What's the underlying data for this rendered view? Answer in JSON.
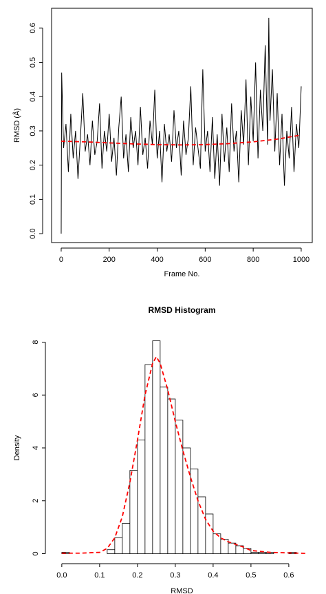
{
  "chart_data": [
    {
      "type": "line",
      "x_label": "Frame No.",
      "y_label": "RMSD (Å)",
      "xlim": [
        -40,
        1046
      ],
      "ylim": [
        -0.026,
        0.658
      ],
      "xticks": [
        0,
        200,
        400,
        600,
        800,
        1000
      ],
      "yticks": [
        {
          "value": 0,
          "label": "0.0"
        },
        0.1,
        0.2,
        0.3,
        0.4,
        0.5,
        0.6
      ],
      "box": true,
      "series": [
        {
          "color": "#000000",
          "style": "solid",
          "x": [
            0,
            2,
            10,
            20,
            30,
            40,
            50,
            60,
            70,
            80,
            90,
            100,
            110,
            120,
            130,
            140,
            150,
            160,
            170,
            180,
            190,
            200,
            210,
            220,
            230,
            240,
            250,
            260,
            270,
            280,
            290,
            300,
            310,
            320,
            330,
            340,
            350,
            360,
            370,
            380,
            390,
            400,
            410,
            420,
            430,
            440,
            450,
            460,
            470,
            480,
            490,
            500,
            510,
            520,
            530,
            540,
            550,
            560,
            570,
            580,
            590,
            600,
            610,
            620,
            630,
            640,
            650,
            660,
            670,
            680,
            690,
            700,
            710,
            720,
            730,
            740,
            750,
            760,
            770,
            780,
            790,
            800,
            810,
            820,
            830,
            840,
            850,
            860,
            865,
            870,
            880,
            890,
            900,
            910,
            920,
            930,
            940,
            950,
            960,
            970,
            980,
            990,
            1000
          ],
          "values": [
            0.0,
            0.47,
            0.25,
            0.32,
            0.18,
            0.35,
            0.22,
            0.3,
            0.16,
            0.28,
            0.41,
            0.24,
            0.29,
            0.2,
            0.33,
            0.23,
            0.27,
            0.38,
            0.19,
            0.3,
            0.24,
            0.35,
            0.21,
            0.28,
            0.17,
            0.31,
            0.4,
            0.22,
            0.29,
            0.18,
            0.34,
            0.25,
            0.3,
            0.2,
            0.37,
            0.23,
            0.28,
            0.19,
            0.33,
            0.26,
            0.42,
            0.22,
            0.3,
            0.15,
            0.32,
            0.24,
            0.29,
            0.21,
            0.36,
            0.25,
            0.3,
            0.17,
            0.33,
            0.23,
            0.28,
            0.43,
            0.2,
            0.31,
            0.25,
            0.19,
            0.48,
            0.24,
            0.3,
            0.18,
            0.34,
            0.16,
            0.29,
            0.14,
            0.35,
            0.21,
            0.31,
            0.18,
            0.38,
            0.24,
            0.3,
            0.15,
            0.36,
            0.26,
            0.45,
            0.2,
            0.4,
            0.27,
            0.5,
            0.22,
            0.42,
            0.3,
            0.55,
            0.26,
            0.63,
            0.33,
            0.48,
            0.24,
            0.41,
            0.2,
            0.35,
            0.14,
            0.3,
            0.22,
            0.37,
            0.18,
            0.32,
            0.25,
            0.43
          ]
        },
        {
          "color": "#ff0000",
          "style": "dashed",
          "x": [
            0,
            100,
            200,
            300,
            400,
            500,
            600,
            700,
            800,
            900,
            1000
          ],
          "values": [
            0.27,
            0.268,
            0.265,
            0.262,
            0.26,
            0.259,
            0.26,
            0.263,
            0.268,
            0.276,
            0.288
          ]
        }
      ]
    },
    {
      "type": "histogram",
      "title": "RMSD Histogram",
      "x_label": "RMSD",
      "y_label": "Density",
      "xlim": [
        -0.027,
        0.662
      ],
      "ylim": [
        -0.3,
        8.3
      ],
      "xticks": [
        {
          "value": 0,
          "label": "0.0"
        },
        0.1,
        0.2,
        0.3,
        0.4,
        0.5,
        0.6
      ],
      "yticks": [
        0,
        2,
        4,
        6,
        8
      ],
      "bins": [
        0,
        0.02,
        0.04,
        0.06,
        0.08,
        0.1,
        0.12,
        0.14,
        0.16,
        0.18,
        0.2,
        0.22,
        0.24,
        0.26,
        0.28,
        0.3,
        0.32,
        0.34,
        0.36,
        0.38,
        0.4,
        0.42,
        0.44,
        0.46,
        0.48,
        0.5,
        0.52,
        0.54,
        0.56,
        0.58,
        0.6,
        0.62,
        0.64
      ],
      "values": [
        0.05,
        0,
        0,
        0,
        0,
        0,
        0.15,
        0.6,
        1.15,
        3.15,
        4.3,
        7.15,
        8.05,
        6.3,
        5.85,
        5.05,
        4.0,
        3.2,
        2.15,
        1.5,
        0.75,
        0.55,
        0.4,
        0.3,
        0.2,
        0.05,
        0.05,
        0.05,
        0,
        0,
        0.05,
        0
      ],
      "color": "#ffffff",
      "series": [
        {
          "color": "#ff0000",
          "style": "dashed",
          "x": [
            0,
            0.05,
            0.1,
            0.12,
            0.14,
            0.16,
            0.18,
            0.2,
            0.22,
            0.24,
            0.25,
            0.26,
            0.28,
            0.3,
            0.32,
            0.34,
            0.36,
            0.38,
            0.4,
            0.42,
            0.44,
            0.46,
            0.48,
            0.5,
            0.55,
            0.6,
            0.65
          ],
          "values": [
            0.02,
            0.02,
            0.05,
            0.2,
            0.6,
            1.4,
            2.7,
            4.3,
            6.0,
            7.2,
            7.45,
            7.2,
            6.2,
            5.0,
            3.9,
            2.9,
            2.0,
            1.3,
            0.85,
            0.6,
            0.45,
            0.35,
            0.25,
            0.12,
            0.05,
            0.03,
            0.01
          ]
        }
      ]
    }
  ]
}
